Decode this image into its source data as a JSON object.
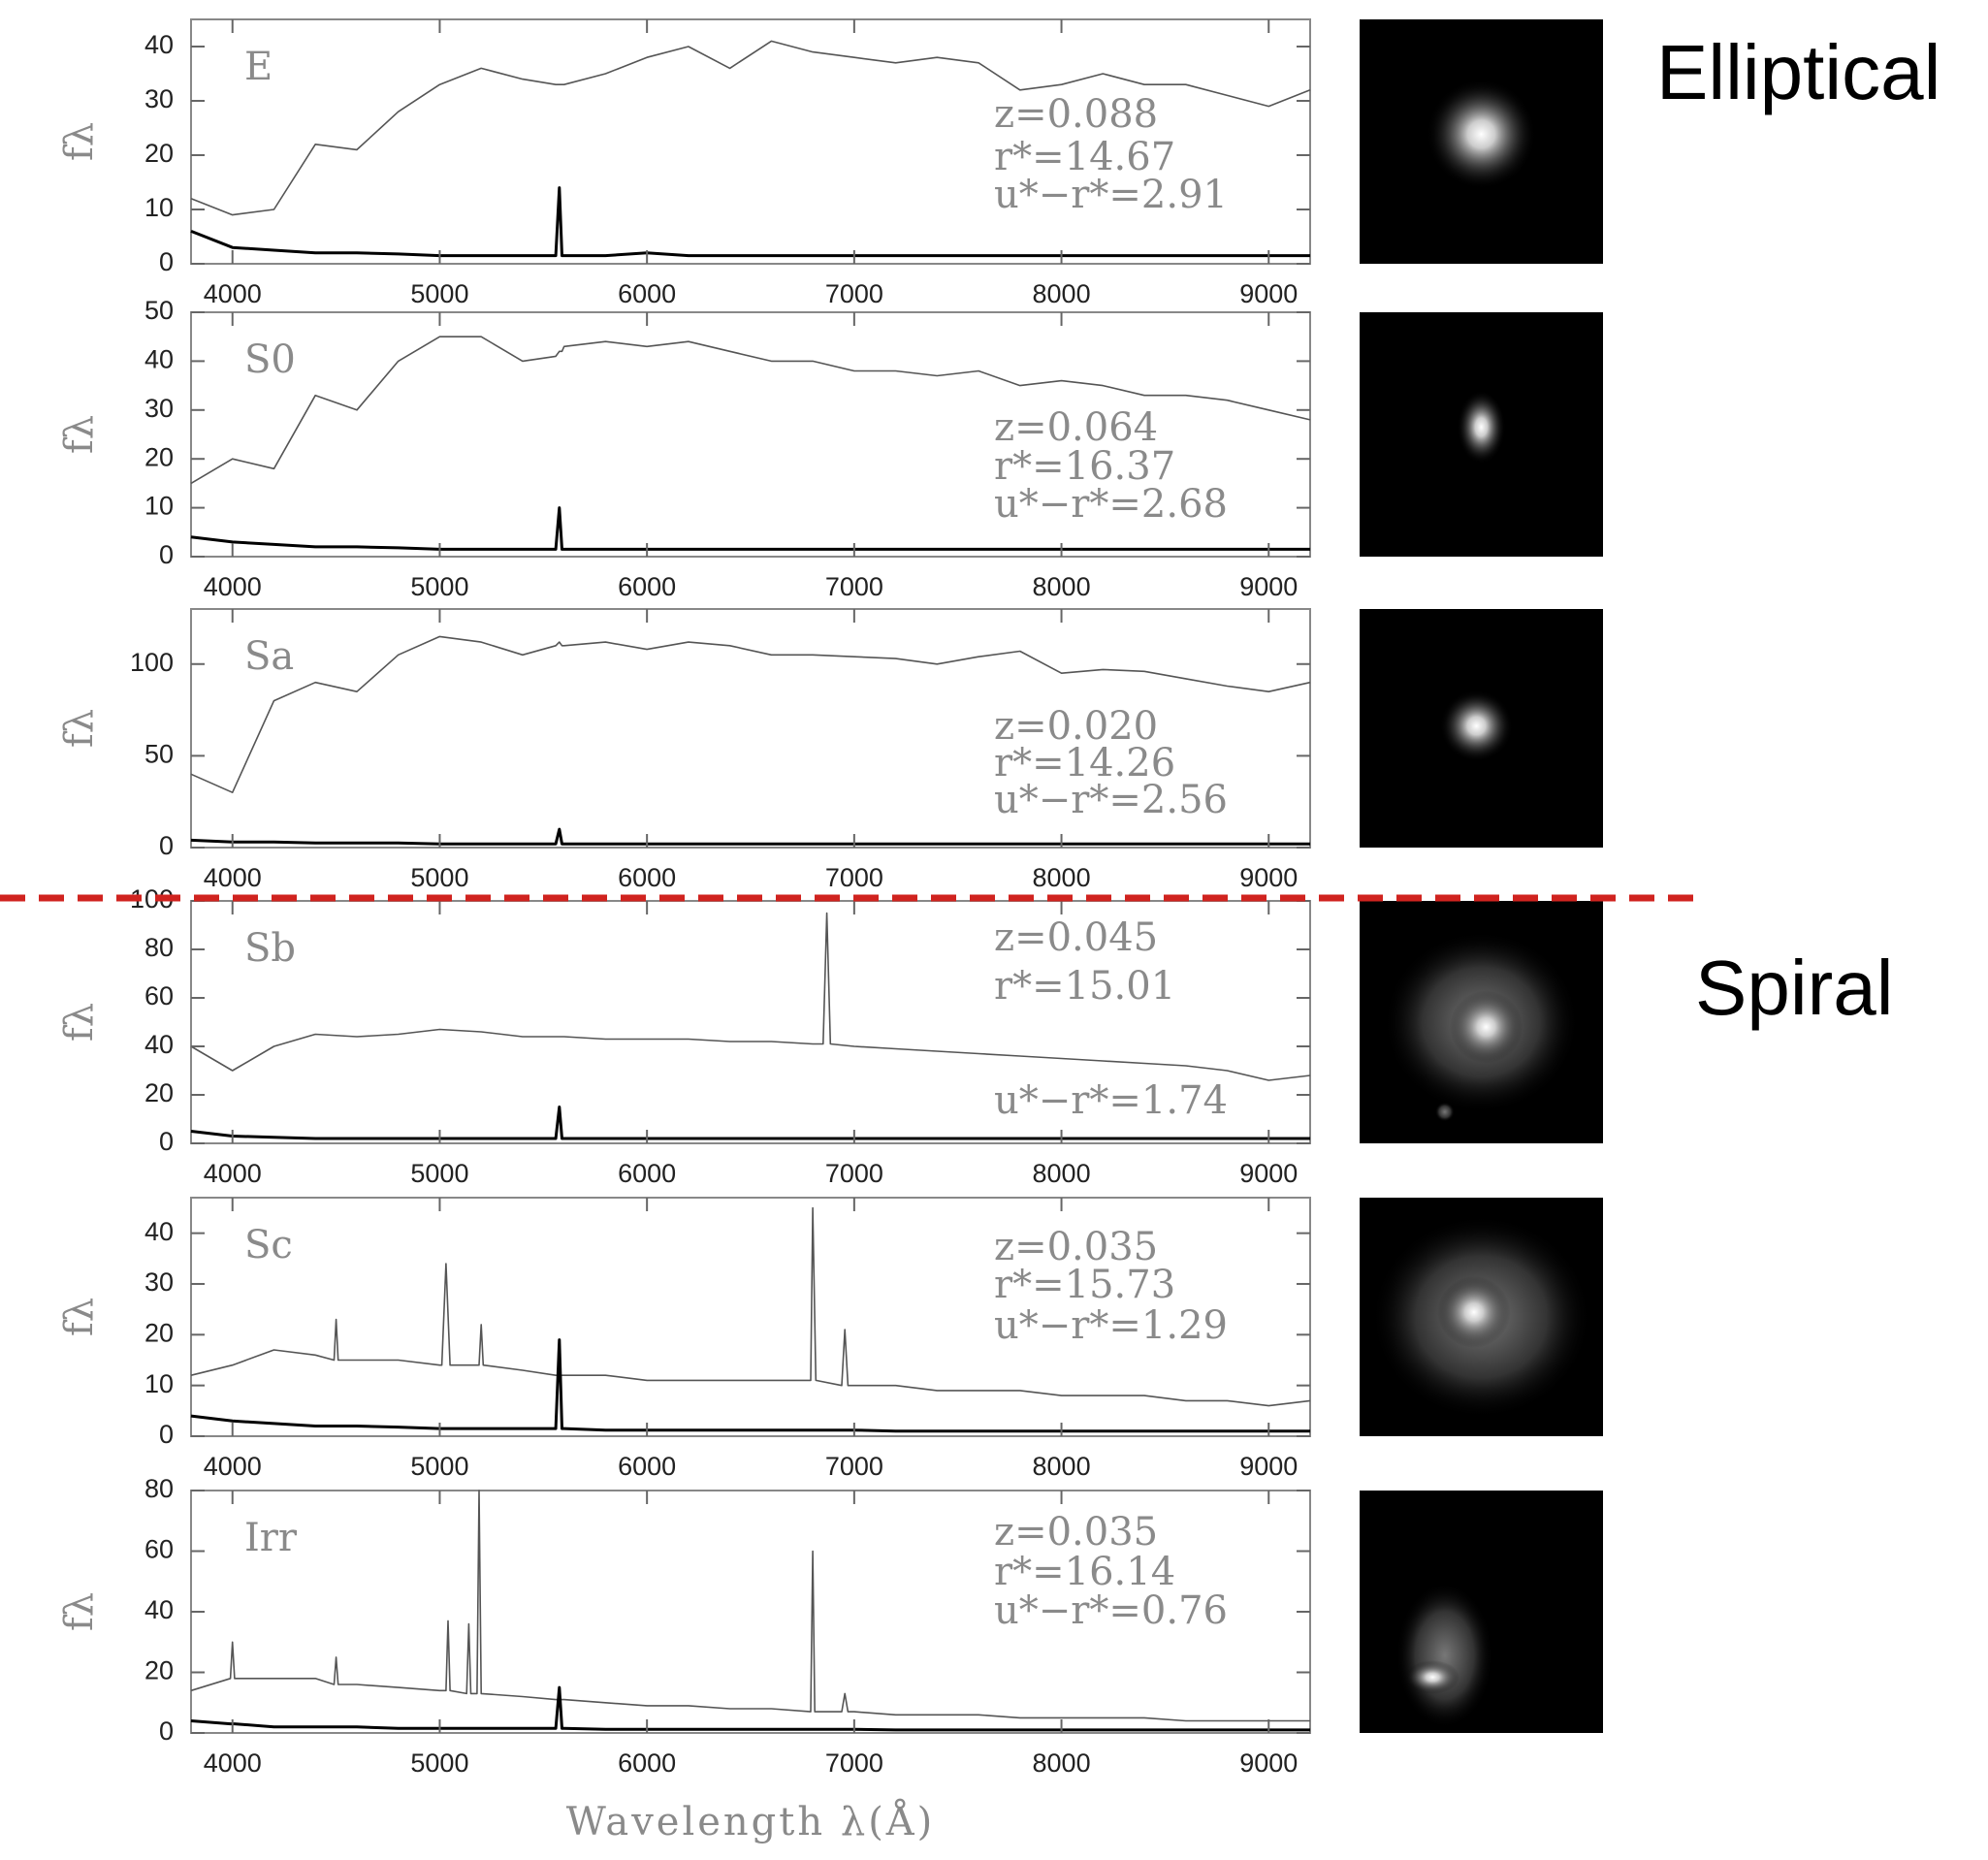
{
  "labels": [
    "Elliptical",
    "Spiral"
  ],
  "chart_data": [
    {
      "type": "line",
      "label": "E",
      "ylabel": "fλ",
      "annotations": [
        "z=0.088",
        "r*=14.67",
        "u*−r*=2.91"
      ],
      "xlim": [
        3800,
        9200
      ],
      "xticks": [
        4000,
        5000,
        6000,
        7000,
        8000,
        9000
      ],
      "ylim": [
        0,
        45
      ],
      "yticks": [
        0,
        10,
        20,
        30,
        40
      ],
      "x": [
        3800,
        4000,
        4200,
        4400,
        4600,
        4800,
        5000,
        5200,
        5400,
        5560,
        5577,
        5590,
        5600,
        5800,
        6000,
        6200,
        6400,
        6600,
        6800,
        7000,
        7200,
        7400,
        7600,
        7800,
        8000,
        8200,
        8400,
        8600,
        8800,
        9000,
        9200
      ],
      "series": [
        {
          "color": "#555555",
          "values": [
            12,
            9,
            10,
            22,
            21,
            28,
            33,
            36,
            34,
            33,
            33,
            33,
            33,
            35,
            38,
            40,
            36,
            41,
            39,
            38,
            37,
            38,
            37,
            32,
            33,
            35,
            33,
            33,
            31,
            29,
            32
          ]
        },
        {
          "color": "#000000",
          "values": [
            6,
            3,
            2.5,
            2,
            2,
            1.8,
            1.5,
            1.5,
            1.5,
            1.5,
            14,
            1.5,
            1.5,
            1.5,
            2,
            1.5,
            1.5,
            1.5,
            1.5,
            1.5,
            1.5,
            1.5,
            1.5,
            1.5,
            1.5,
            1.5,
            1.5,
            1.5,
            1.5,
            1.5,
            1.5
          ]
        }
      ]
    },
    {
      "type": "line",
      "label": "S0",
      "ylabel": "fλ",
      "annotations": [
        "z=0.064",
        "r*=16.37",
        "u*−r*=2.68"
      ],
      "xlim": [
        3800,
        9200
      ],
      "xticks": [
        4000,
        5000,
        6000,
        7000,
        8000,
        9000
      ],
      "ylim": [
        0,
        50
      ],
      "yticks": [
        0,
        10,
        20,
        30,
        40,
        50
      ],
      "x": [
        3800,
        4000,
        4200,
        4400,
        4600,
        4800,
        5000,
        5200,
        5400,
        5560,
        5577,
        5590,
        5600,
        5800,
        6000,
        6200,
        6400,
        6600,
        6800,
        7000,
        7200,
        7400,
        7600,
        7800,
        8000,
        8200,
        8400,
        8600,
        8800,
        9000,
        9200
      ],
      "series": [
        {
          "color": "#555555",
          "values": [
            15,
            20,
            18,
            33,
            30,
            40,
            45,
            45,
            40,
            41,
            42,
            42,
            43,
            44,
            43,
            44,
            42,
            40,
            40,
            38,
            38,
            37,
            38,
            35,
            36,
            35,
            33,
            33,
            32,
            30,
            28
          ]
        },
        {
          "color": "#000000",
          "values": [
            4,
            3,
            2.5,
            2,
            2,
            1.8,
            1.5,
            1.5,
            1.5,
            1.5,
            10,
            1.5,
            1.5,
            1.5,
            1.5,
            1.5,
            1.5,
            1.5,
            1.5,
            1.5,
            1.5,
            1.5,
            1.5,
            1.5,
            1.5,
            1.5,
            1.5,
            1.5,
            1.5,
            1.5,
            1.5
          ]
        }
      ]
    },
    {
      "type": "line",
      "label": "Sa",
      "ylabel": "fλ",
      "annotations": [
        "z=0.020",
        "r*=14.26",
        "u*−r*=2.56"
      ],
      "xlim": [
        3800,
        9200
      ],
      "xticks": [
        4000,
        5000,
        6000,
        7000,
        8000,
        9000
      ],
      "ylim": [
        0,
        130
      ],
      "yticks": [
        0,
        50,
        100
      ],
      "x": [
        3800,
        4000,
        4200,
        4400,
        4600,
        4800,
        5000,
        5200,
        5400,
        5560,
        5577,
        5590,
        5600,
        5800,
        6000,
        6200,
        6400,
        6600,
        6800,
        7000,
        7200,
        7400,
        7600,
        7800,
        8000,
        8200,
        8400,
        8600,
        8800,
        9000,
        9200
      ],
      "series": [
        {
          "color": "#555555",
          "values": [
            40,
            30,
            80,
            90,
            85,
            105,
            115,
            112,
            105,
            110,
            112,
            110,
            110,
            112,
            108,
            112,
            110,
            105,
            105,
            104,
            103,
            100,
            104,
            107,
            95,
            97,
            96,
            92,
            88,
            85,
            90
          ]
        },
        {
          "color": "#000000",
          "values": [
            4,
            3,
            3,
            2.5,
            2.5,
            2.5,
            2,
            2,
            2,
            2,
            10,
            2,
            2,
            2,
            2,
            2,
            2,
            2,
            2,
            2,
            2,
            2,
            2,
            2,
            2,
            2,
            2,
            2,
            2,
            2,
            2
          ]
        }
      ]
    },
    {
      "type": "line",
      "label": "Sb",
      "ylabel": "fλ",
      "annotations": [
        "z=0.045",
        "r*=15.01",
        "u*−r*=1.74"
      ],
      "xlim": [
        3800,
        9200
      ],
      "xticks": [
        4000,
        5000,
        6000,
        7000,
        8000,
        9000
      ],
      "ylim": [
        0,
        100
      ],
      "yticks": [
        0,
        20,
        40,
        60,
        80,
        100
      ],
      "x": [
        3800,
        4000,
        4200,
        4400,
        4600,
        4800,
        5000,
        5200,
        5400,
        5560,
        5577,
        5590,
        5600,
        5800,
        6000,
        6200,
        6400,
        6600,
        6800,
        6850,
        6868,
        6885,
        7000,
        7200,
        7400,
        7600,
        7800,
        8000,
        8200,
        8400,
        8600,
        8800,
        9000,
        9200
      ],
      "series": [
        {
          "color": "#555555",
          "values": [
            40,
            30,
            40,
            45,
            44,
            45,
            47,
            46,
            44,
            44,
            44,
            44,
            44,
            43,
            43,
            43,
            42,
            42,
            41,
            41,
            95,
            41,
            40,
            39,
            38,
            37,
            36,
            35,
            34,
            33,
            32,
            30,
            26,
            28
          ]
        },
        {
          "color": "#000000",
          "values": [
            5,
            3,
            2.5,
            2,
            2,
            2,
            2,
            2,
            2,
            2,
            15,
            2,
            2,
            2,
            2,
            2,
            2,
            2,
            2,
            2,
            2,
            2,
            2,
            2,
            2,
            2,
            2,
            2,
            2,
            2,
            2,
            2,
            2,
            2
          ]
        }
      ]
    },
    {
      "type": "line",
      "label": "Sc",
      "ylabel": "fλ",
      "annotations": [
        "z=0.035",
        "r*=15.73",
        "u*−r*=1.29"
      ],
      "xlim": [
        3800,
        9200
      ],
      "xticks": [
        4000,
        5000,
        6000,
        7000,
        8000,
        9000
      ],
      "ylim": [
        0,
        47
      ],
      "yticks": [
        0,
        10,
        20,
        30,
        40
      ],
      "x": [
        3800,
        4000,
        4200,
        4400,
        4490,
        4500,
        4510,
        4600,
        4800,
        5000,
        5010,
        5030,
        5050,
        5190,
        5200,
        5210,
        5400,
        5560,
        5577,
        5590,
        5600,
        5800,
        6000,
        6200,
        6400,
        6600,
        6790,
        6800,
        6815,
        6940,
        6955,
        6970,
        7000,
        7200,
        7400,
        7600,
        7800,
        8000,
        8200,
        8400,
        8600,
        8800,
        9000,
        9200
      ],
      "series": [
        {
          "color": "#555555",
          "values": [
            12,
            14,
            17,
            16,
            15,
            23,
            15,
            15,
            15,
            14,
            14,
            34,
            14,
            14,
            22,
            14,
            13,
            12,
            12,
            12,
            12,
            12,
            11,
            11,
            11,
            11,
            11,
            45,
            11,
            10,
            21,
            10,
            10,
            10,
            9,
            9,
            9,
            8,
            8,
            8,
            7,
            7,
            6,
            7
          ]
        },
        {
          "color": "#000000",
          "values": [
            4,
            3,
            2.5,
            2,
            2,
            2,
            2,
            2,
            1.8,
            1.5,
            1.5,
            1.5,
            1.5,
            1.5,
            1.5,
            1.5,
            1.5,
            1.5,
            19,
            1.5,
            1.5,
            1.2,
            1.2,
            1.2,
            1.2,
            1.2,
            1.2,
            1.2,
            1.2,
            1.2,
            1.2,
            1.2,
            1.2,
            1,
            1,
            1,
            1,
            1,
            1,
            1,
            1,
            1,
            1,
            1
          ]
        }
      ]
    },
    {
      "type": "line",
      "label": "Irr",
      "ylabel": "fλ",
      "annotations": [
        "z=0.035",
        "r*=16.14",
        "u*−r*=0.76"
      ],
      "xlabel": "Wavelength λ(Å)",
      "xlim": [
        3800,
        9200
      ],
      "xticks": [
        4000,
        5000,
        6000,
        7000,
        8000,
        9000
      ],
      "ylim": [
        0,
        80
      ],
      "yticks": [
        0,
        20,
        40,
        60,
        80
      ],
      "x": [
        3800,
        3990,
        4000,
        4010,
        4200,
        4400,
        4490,
        4500,
        4510,
        4600,
        4800,
        5000,
        5030,
        5040,
        5050,
        5130,
        5140,
        5150,
        5180,
        5190,
        5200,
        5400,
        5560,
        5577,
        5590,
        5600,
        5800,
        6000,
        6200,
        6400,
        6600,
        6790,
        6800,
        6810,
        6940,
        6955,
        6970,
        7000,
        7200,
        7400,
        7600,
        7800,
        8000,
        8200,
        8400,
        8600,
        8800,
        9000,
        9200
      ],
      "series": [
        {
          "color": "#555555",
          "values": [
            14,
            18,
            30,
            18,
            18,
            18,
            16,
            25,
            16,
            16,
            15,
            14,
            14,
            37,
            14,
            13,
            36,
            13,
            13,
            80,
            13,
            12,
            11,
            11,
            11,
            11,
            10,
            9,
            9,
            8,
            8,
            7,
            60,
            7,
            7,
            13,
            7,
            7,
            6,
            6,
            6,
            5,
            5,
            5,
            5,
            4,
            4,
            4,
            4
          ]
        },
        {
          "color": "#000000",
          "values": [
            4,
            3,
            3,
            3,
            2,
            2,
            2,
            2,
            2,
            2,
            1.5,
            1.5,
            1.5,
            1.5,
            1.5,
            1.5,
            1.5,
            1.5,
            1.5,
            1.5,
            1.5,
            1.5,
            1.5,
            15,
            1.5,
            1.5,
            1.2,
            1.2,
            1.2,
            1.2,
            1.2,
            1.2,
            1.2,
            1.2,
            1.2,
            1.2,
            1.2,
            1.2,
            1,
            1,
            1,
            1,
            1,
            1,
            1,
            1,
            1,
            1,
            1
          ]
        }
      ]
    }
  ]
}
